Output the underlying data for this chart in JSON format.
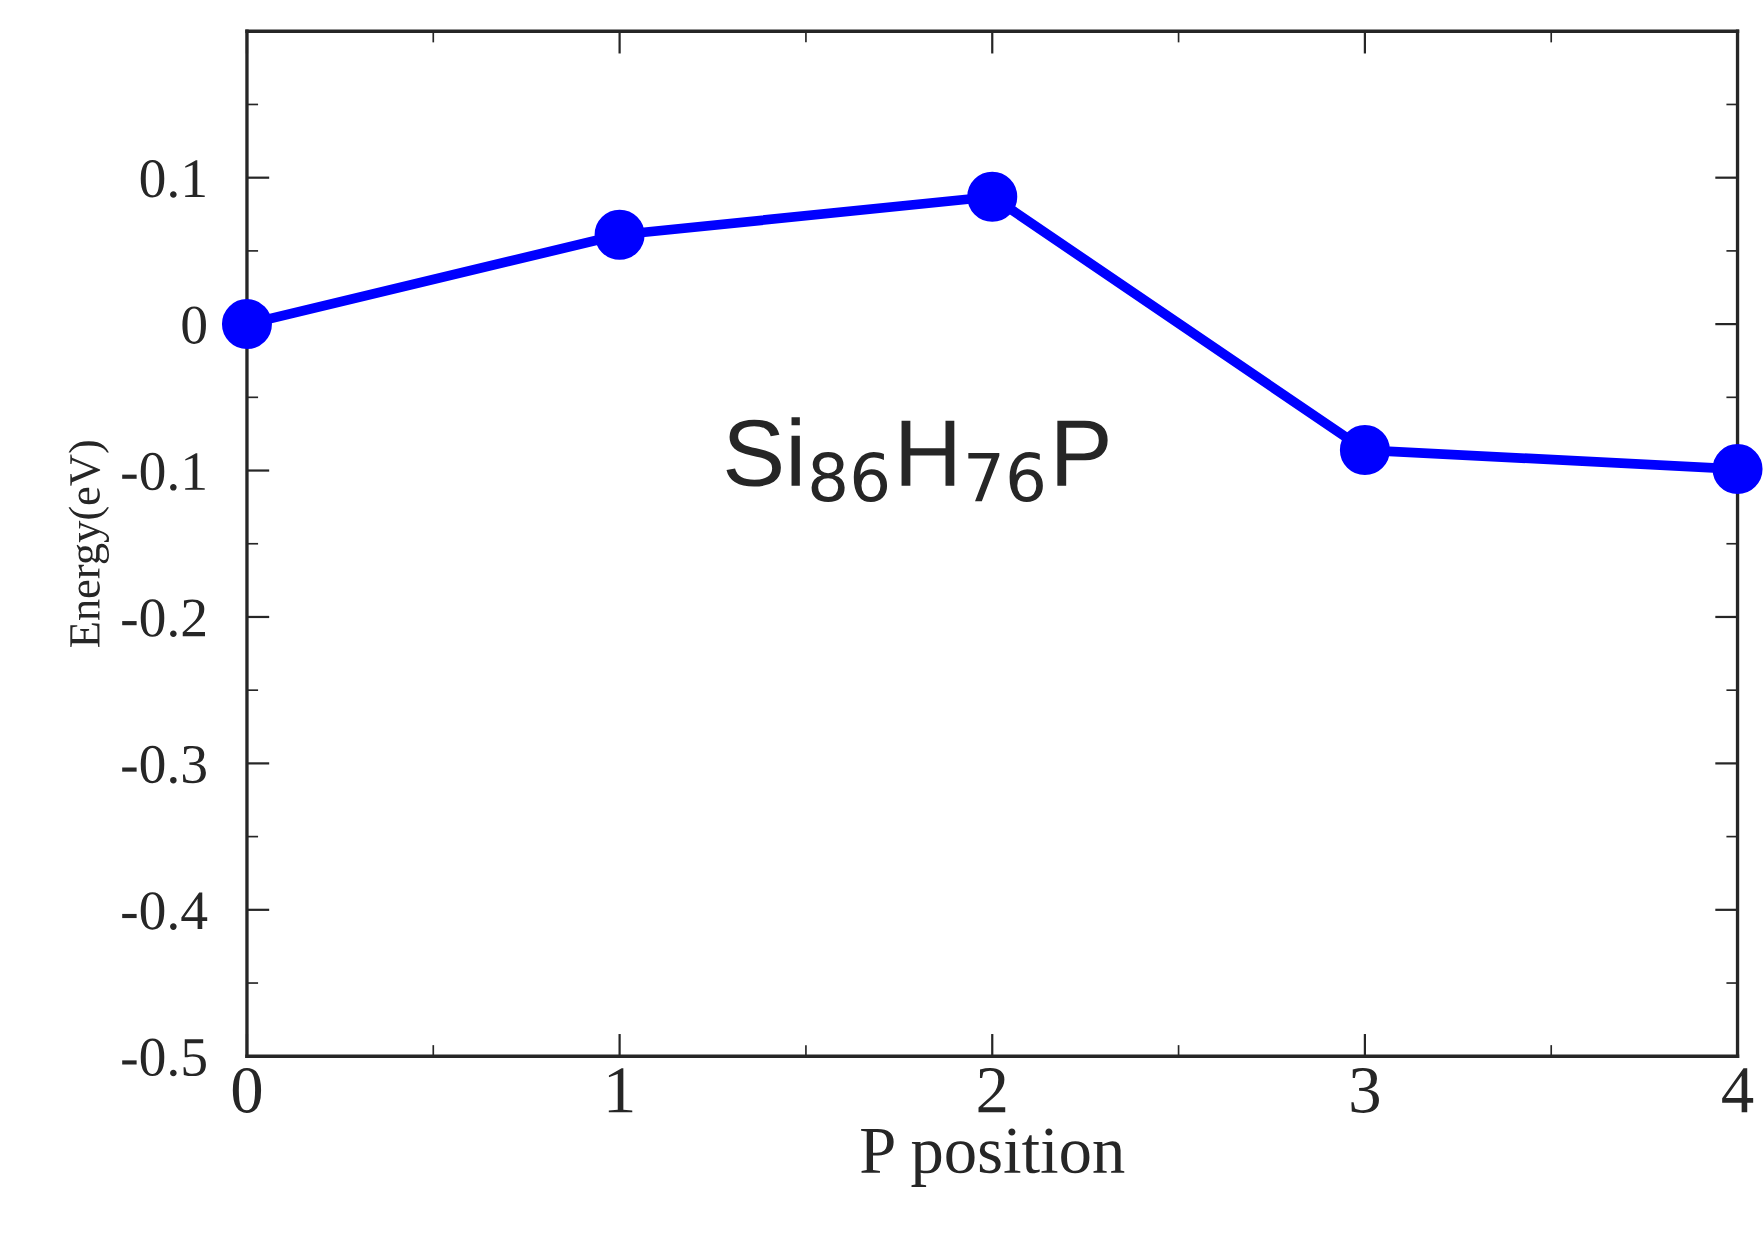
{
  "chart_data": {
    "type": "line",
    "xlabel": "P position",
    "ylabel": "Energy(eV)",
    "x": [
      0,
      1,
      2,
      3,
      4
    ],
    "series": [
      {
        "color": "#0000ff",
        "values": [
          0.0,
          0.061,
          0.087,
          -0.086,
          -0.099
        ]
      }
    ],
    "xlim": [
      0,
      4
    ],
    "xticks": [
      0,
      1,
      2,
      3,
      4
    ],
    "ylim": [
      -0.5,
      0.2
    ],
    "yticks": [
      -0.5,
      -0.4,
      -0.3,
      -0.2,
      -0.1,
      0,
      0.1
    ],
    "marker": "circle",
    "line_style": "solid",
    "grid": false,
    "legend": false,
    "annotations": [
      "Si$_{86}$H$_{76}$P"
    ]
  }
}
